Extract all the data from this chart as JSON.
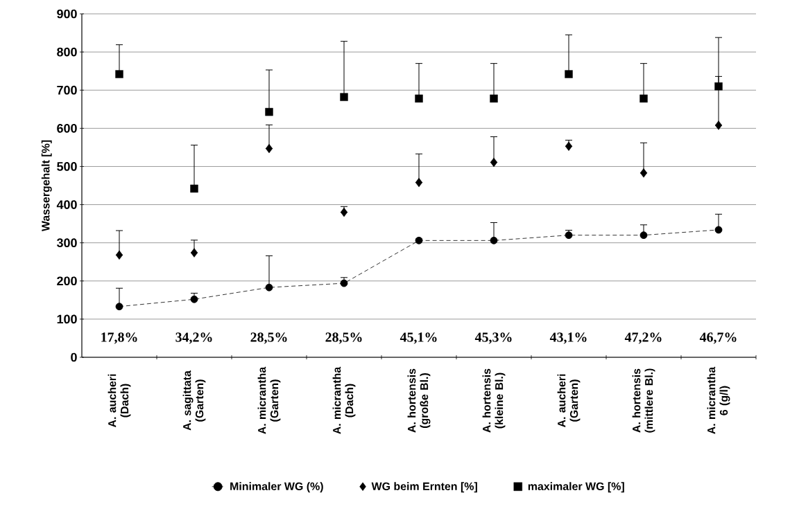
{
  "chart_data": {
    "type": "scatter",
    "categories": [
      "A. aucheri (Dach)",
      "A. sagittata (Garten)",
      "A. micrantha (Garten)",
      "A. micrantha (Dach)",
      "A. hortensis (große Bl.)",
      "A. hortensis (kleine Bl.)",
      "A. aucheri (Garten)",
      "A. hortensis (mittlere Bl.)",
      "A. micrantha 6 (g/l)"
    ],
    "series": [
      {
        "name": "Minimaler WG (%)",
        "type": "line",
        "color": "#000000",
        "marker": "circle",
        "line_style": "dashed",
        "values": [
          133,
          152,
          183,
          194,
          306,
          306,
          320,
          320,
          334
        ],
        "errors": [
          [
            133,
            181
          ],
          [
            152,
            168
          ],
          [
            183,
            266
          ],
          [
            194,
            209
          ],
          [
            306,
            310
          ],
          [
            306,
            353
          ],
          [
            320,
            333
          ],
          [
            320,
            347
          ],
          [
            334,
            375
          ]
        ]
      },
      {
        "name": "WG beim Ernten [%]",
        "color": "#000000",
        "marker": "diamond",
        "values": [
          268,
          274,
          547,
          380,
          458,
          511,
          553,
          483,
          608
        ],
        "errors": [
          [
            268,
            332
          ],
          [
            274,
            307
          ],
          [
            547,
            609
          ],
          [
            380,
            395
          ],
          [
            458,
            533
          ],
          [
            511,
            578
          ],
          [
            553,
            569
          ],
          [
            483,
            562
          ],
          [
            608,
            736
          ]
        ]
      },
      {
        "name": "maximaler  WG [%]",
        "color": "#000000",
        "marker": "square",
        "values": [
          742,
          442,
          643,
          682,
          678,
          678,
          742,
          678,
          710
        ],
        "errors": [
          [
            742,
            819
          ],
          [
            442,
            556
          ],
          [
            643,
            753
          ],
          [
            682,
            828
          ],
          [
            678,
            770
          ],
          [
            678,
            770
          ],
          [
            742,
            845
          ],
          [
            678,
            770
          ],
          [
            710,
            838
          ]
        ]
      }
    ],
    "ylabel": "Wassergehalt [%]",
    "ylim": [
      0,
      900
    ],
    "yticks": [
      0,
      100,
      200,
      300,
      400,
      500,
      600,
      700,
      800,
      900
    ],
    "grid": "y",
    "legend": "bottom",
    "annotations": [
      "17,8%",
      "34,2%",
      "28,5%",
      "28,5%",
      "45,1%",
      "45,3%",
      "43,1%",
      "47,2%",
      "46,7%"
    ]
  }
}
